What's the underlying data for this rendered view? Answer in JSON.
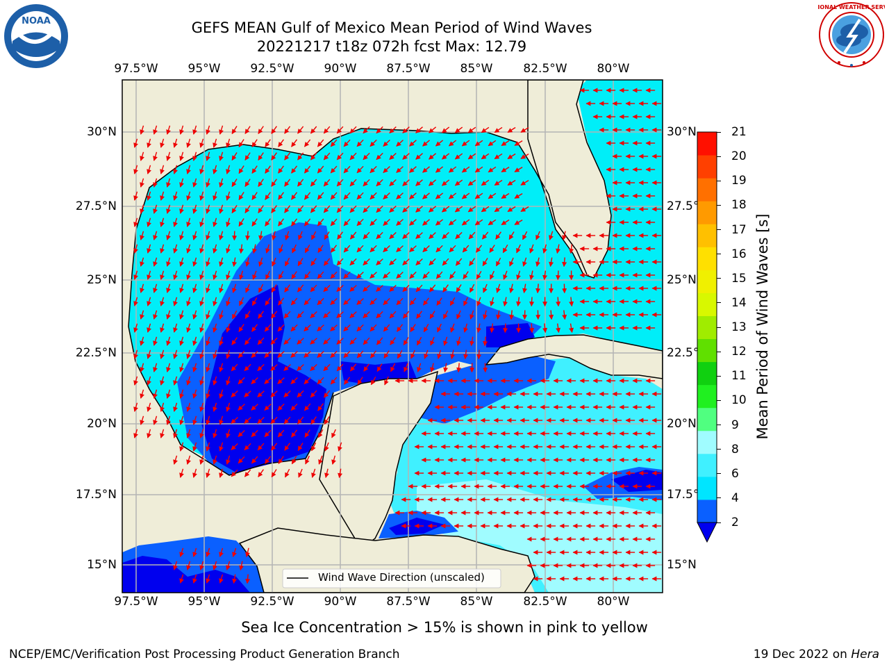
{
  "title_line1": "GEFS MEAN Gulf of Mexico Mean Period of Wind Waves",
  "title_line2": "20221217 t18z 072h fcst   Max: 12.79",
  "lon_ticks": [
    "97.5°W",
    "95°W",
    "92.5°W",
    "90°W",
    "87.5°W",
    "85°W",
    "82.5°W",
    "80°W"
  ],
  "lat_ticks_left": [
    "30°N",
    "27.5°N",
    "25°N",
    "22.5°N",
    "20°N",
    "17.5°N",
    "15°N"
  ],
  "lat_ticks_right": [
    "30°N",
    "27.5°",
    "25°N",
    "22.5°",
    "20°N",
    "17.5°",
    "15°N"
  ],
  "legend_label": "Wind Wave Direction (unscaled)",
  "colorbar": {
    "label": "Mean Period of Wind Waves [s]",
    "ticks": [
      "2",
      "4",
      "6",
      "8",
      "9",
      "10",
      "11",
      "12",
      "13",
      "14",
      "15",
      "16",
      "17",
      "18",
      "19",
      "20",
      "21"
    ],
    "colors": [
      "#0a60ff",
      "#00e5ff",
      "#40f0ff",
      "#a0fcff",
      "#50ff80",
      "#20f020",
      "#10d010",
      "#60e000",
      "#a0ec00",
      "#d8f800",
      "#f0f000",
      "#ffe000",
      "#ffc000",
      "#ff9a00",
      "#ff7000",
      "#ff4000",
      "#ff1000"
    ],
    "under_color": "#0000ee"
  },
  "subtitle": "Sea Ice Concentration > 15% is shown in pink to yellow",
  "footer_left": "NCEP/EMC/Verification Post Processing Product Generation Branch",
  "footer_right_date": "19 Dec 2022 on ",
  "footer_right_host": "Hera",
  "logos": {
    "noaa": "NOAA",
    "nws": "NATIONAL WEATHER SERVICE"
  },
  "colors": {
    "land": "#efedd8",
    "arrow": "#ee0000",
    "grid": "#b4b4b4"
  }
}
